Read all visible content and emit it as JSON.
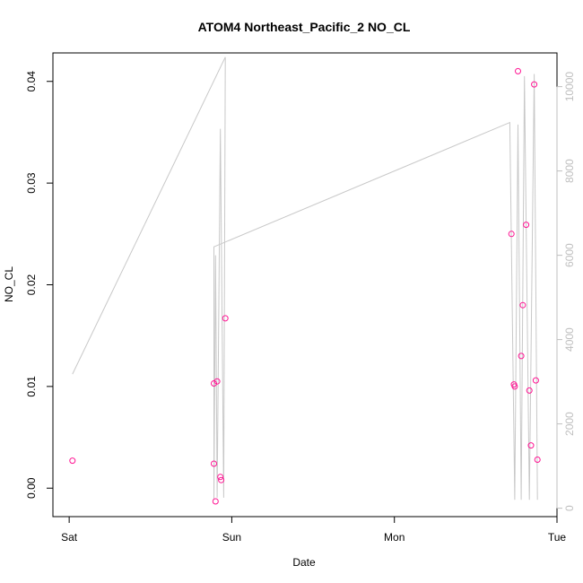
{
  "chart_data": {
    "type": "scatter",
    "title": "ATOM4 Northeast_Pacific_2 NO_CL",
    "xlabel": "Date",
    "ylabel": "NO_CL",
    "x_tick_labels": [
      "Sat",
      "Sun",
      "Mon",
      "Tue"
    ],
    "x_ticks_day": [
      0,
      1,
      2,
      3
    ],
    "xlim_day": [
      -0.1,
      3.0
    ],
    "ylim": [
      -0.0028,
      0.0428
    ],
    "y_ticks": [
      0.0,
      0.01,
      0.02,
      0.03,
      0.04
    ],
    "y_tick_labels": [
      "0.00",
      "0.01",
      "0.02",
      "0.03",
      "0.04"
    ],
    "y2_ticks": [
      0,
      2000,
      4000,
      6000,
      8000,
      10000
    ],
    "y2_tick_labels": [
      "0",
      "2000",
      "4000",
      "6000",
      "8000",
      "10000"
    ],
    "y2lim": [
      -200,
      10800
    ],
    "grid": false,
    "series": [
      {
        "type": "scatter",
        "color": "#ff1493",
        "points": [
          {
            "x": 0.02,
            "y": 0.0027
          },
          {
            "x": 0.89,
            "y": 0.0103
          },
          {
            "x": 0.89,
            "y": 0.0024
          },
          {
            "x": 0.9,
            "y": -0.0013
          },
          {
            "x": 0.91,
            "y": 0.0105
          },
          {
            "x": 0.93,
            "y": 0.0011
          },
          {
            "x": 0.935,
            "y": 0.0008
          },
          {
            "x": 0.96,
            "y": 0.0167
          },
          {
            "x": 2.72,
            "y": 0.025
          },
          {
            "x": 2.735,
            "y": 0.0102
          },
          {
            "x": 2.74,
            "y": 0.01
          },
          {
            "x": 2.76,
            "y": 0.041
          },
          {
            "x": 2.78,
            "y": 0.013
          },
          {
            "x": 2.79,
            "y": 0.018
          },
          {
            "x": 2.81,
            "y": 0.0259
          },
          {
            "x": 2.83,
            "y": 0.0096
          },
          {
            "x": 2.84,
            "y": 0.0042
          },
          {
            "x": 2.86,
            "y": 0.0397
          },
          {
            "x": 2.87,
            "y": 0.0106
          },
          {
            "x": 2.88,
            "y": 0.0028
          }
        ]
      },
      {
        "type": "line",
        "axis": "right",
        "color": "#c8c8c8",
        "points": [
          {
            "x": 0.02,
            "y": 3180
          },
          {
            "x": 0.96,
            "y": 10700
          },
          {
            "x": 0.95,
            "y": 250
          },
          {
            "x": 0.93,
            "y": 9000
          },
          {
            "x": 0.91,
            "y": 250
          },
          {
            "x": 0.9,
            "y": 6000
          },
          {
            "x": 0.89,
            "y": 200
          },
          {
            "x": 0.89,
            "y": 6200
          },
          {
            "x": 2.71,
            "y": 9150
          },
          {
            "x": 2.74,
            "y": 200
          },
          {
            "x": 2.76,
            "y": 9100
          },
          {
            "x": 2.78,
            "y": 200
          },
          {
            "x": 2.8,
            "y": 10250
          },
          {
            "x": 2.83,
            "y": 200
          },
          {
            "x": 2.86,
            "y": 10300
          },
          {
            "x": 2.88,
            "y": 200
          }
        ]
      }
    ]
  }
}
